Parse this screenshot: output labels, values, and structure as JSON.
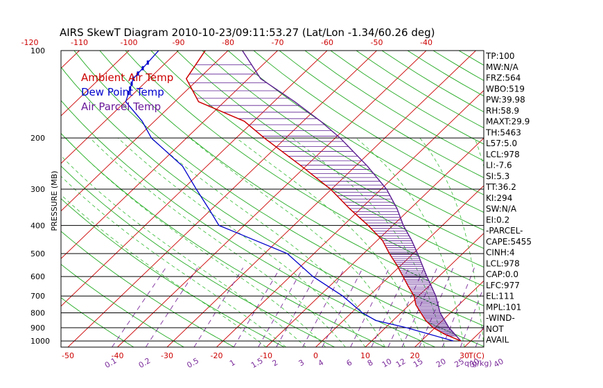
{
  "chart_data": {
    "type": "line",
    "title": "AIRS SkewT Diagram 2010-10-23/09:11:53.27 (Lat/Lon -1.34/60.26 deg)",
    "ylabel": "PRESSURE (MB)",
    "x_top_label": "T(C)",
    "x_bottom_label": "q(g/kg)",
    "legend": [
      {
        "name": "Ambient Air Temp",
        "color": "#cc0000"
      },
      {
        "name": "Dew Point Temp",
        "color": "#0000cc"
      },
      {
        "name": "Air Parcel Temp",
        "color": "#6a1a9a"
      }
    ],
    "colors": {
      "temperature": "#cc0000",
      "dewpoint": "#0000cc",
      "parcel": "#5a1a90",
      "isotherm": "#cc0000",
      "dry_adiabat": "#22aa22",
      "moist_adiabat": "#33bb33",
      "mixing_ratio": "#7a2a9a",
      "isobar": "#000000"
    },
    "pressure_levels": [
      100,
      200,
      300,
      400,
      500,
      600,
      700,
      800,
      900,
      1000
    ],
    "ylim": [
      1050,
      100
    ],
    "top_temp_ticks": [
      -120,
      -110,
      -100,
      -90,
      -80,
      -70,
      -60,
      -50,
      -40
    ],
    "bottom_temp_ticks": [
      -50,
      -40,
      -30,
      -20,
      -10,
      0,
      10,
      20,
      30
    ],
    "mixing_ratio_labels": [
      "0.1",
      "0.2",
      "0.5",
      "1",
      "1.5",
      "2",
      "3",
      "4",
      "6",
      "8",
      "10",
      "12",
      "15",
      "20",
      "25",
      "30",
      "40"
    ],
    "temperature_profile": [
      {
        "p": 100,
        "t": -84.6
      },
      {
        "p": 125,
        "t": -82.5
      },
      {
        "p": 150,
        "t": -75.2
      },
      {
        "p": 175,
        "t": -61.9
      },
      {
        "p": 200,
        "t": -54.3
      },
      {
        "p": 250,
        "t": -40.9
      },
      {
        "p": 300,
        "t": -30.2
      },
      {
        "p": 350,
        "t": -22.3
      },
      {
        "p": 400,
        "t": -15.0
      },
      {
        "p": 450,
        "t": -9.0
      },
      {
        "p": 500,
        "t": -4.8
      },
      {
        "p": 550,
        "t": -0.7
      },
      {
        "p": 600,
        "t": 2.8
      },
      {
        "p": 650,
        "t": 6.0
      },
      {
        "p": 700,
        "t": 9.1
      },
      {
        "p": 750,
        "t": 11.3
      },
      {
        "p": 800,
        "t": 14.0
      },
      {
        "p": 850,
        "t": 16.6
      },
      {
        "p": 900,
        "t": 19.6
      },
      {
        "p": 950,
        "t": 23.5
      },
      {
        "p": 1000,
        "t": 28.0
      }
    ],
    "dewpoint_profile": [
      {
        "p": 100,
        "t": -94.0
      },
      {
        "p": 125,
        "t": -93.2
      },
      {
        "p": 150,
        "t": -89.9
      },
      {
        "p": 175,
        "t": -82.5
      },
      {
        "p": 200,
        "t": -77.1
      },
      {
        "p": 250,
        "t": -64.9
      },
      {
        "p": 300,
        "t": -57.3
      },
      {
        "p": 350,
        "t": -50.7
      },
      {
        "p": 400,
        "t": -45.1
      },
      {
        "p": 450,
        "t": -34.7
      },
      {
        "p": 500,
        "t": -25.4
      },
      {
        "p": 600,
        "t": -15.4
      },
      {
        "p": 700,
        "t": -5.3
      },
      {
        "p": 800,
        "t": 2.2
      },
      {
        "p": 850,
        "t": 6.5
      },
      {
        "p": 900,
        "t": 14.2
      },
      {
        "p": 950,
        "t": 20.5
      },
      {
        "p": 1000,
        "t": 26.5
      }
    ],
    "parcel_profile": [
      {
        "p": 100,
        "t": -77.1
      },
      {
        "p": 125,
        "t": -67.5
      },
      {
        "p": 150,
        "t": -55.8
      },
      {
        "p": 175,
        "t": -46.5
      },
      {
        "p": 200,
        "t": -39.0
      },
      {
        "p": 250,
        "t": -27.6
      },
      {
        "p": 300,
        "t": -18.9
      },
      {
        "p": 350,
        "t": -12.7
      },
      {
        "p": 400,
        "t": -7.9
      },
      {
        "p": 450,
        "t": -3.1
      },
      {
        "p": 500,
        "t": 0.9
      },
      {
        "p": 600,
        "t": 7.6
      },
      {
        "p": 700,
        "t": 13.5
      },
      {
        "p": 800,
        "t": 17.9
      },
      {
        "p": 900,
        "t": 22.8
      },
      {
        "p": 1000,
        "t": 28.0
      }
    ],
    "wind_bars_pressures": [
      110,
      115,
      120,
      125,
      130,
      135,
      140
    ],
    "stats": [
      "TP:100",
      "MW:N/A",
      "FRZ:564",
      "WBO:519",
      "PW:39.98",
      "RH:58.9",
      "MAXT:29.9",
      "TH:5463",
      "L57:5.0",
      "LCL:978",
      "LI:-7.6",
      "SI:5.3",
      "TT:36.2",
      "KI:294",
      "SW:N/A",
      "EI:0.2",
      "-PARCEL-",
      "CAPE:5455",
      "CINH:4",
      "LCL:978",
      "CAP:0.0",
      "LFC:977",
      "EL:111",
      "MPL:101",
      "-WIND-",
      "NOT",
      "AVAIL"
    ]
  }
}
